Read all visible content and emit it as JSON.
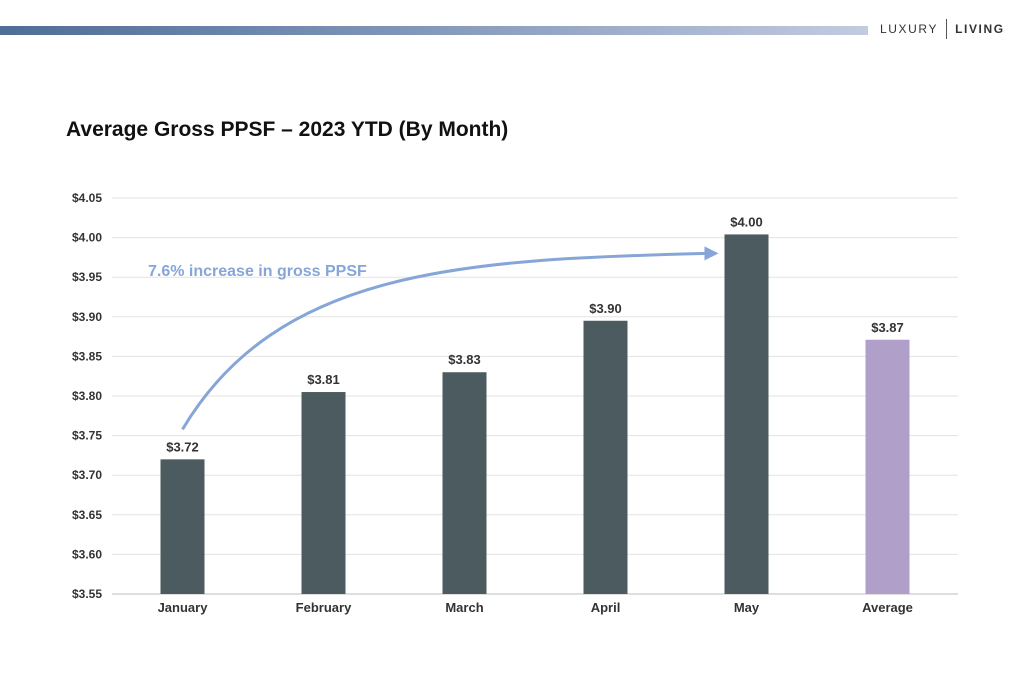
{
  "brand": {
    "part1": "LUXURY",
    "part2": "LIVING"
  },
  "colors": {
    "bar": "#4b5b5f",
    "average_bar": "#b09fc8",
    "arrow": "#86a6d8",
    "grid": "#e3e3e3"
  },
  "chart_data": {
    "type": "bar",
    "title": "Average Gross PPSF – 2023 YTD (By Month)",
    "categories": [
      "January",
      "February",
      "March",
      "April",
      "May",
      "Average"
    ],
    "values": [
      3.72,
      3.805,
      3.83,
      3.895,
      4.004,
      3.871
    ],
    "value_labels": [
      "$3.72",
      "$3.81",
      "$3.83",
      "$3.90",
      "$4.00",
      "$3.87"
    ],
    "highlight_category": "Average",
    "ylim": [
      3.55,
      4.05
    ],
    "yticks": [
      3.55,
      3.6,
      3.65,
      3.7,
      3.75,
      3.8,
      3.85,
      3.9,
      3.95,
      4.0,
      4.05
    ],
    "ytick_labels": [
      "$3.55",
      "$3.60",
      "$3.65",
      "$3.70",
      "$3.75",
      "$3.80",
      "$3.85",
      "$3.90",
      "$3.95",
      "$4.00",
      "$4.05"
    ],
    "grid": true,
    "legend": "none",
    "annotation": {
      "text": "7.6% increase in gross PPSF",
      "from": "January",
      "to": "May"
    }
  }
}
